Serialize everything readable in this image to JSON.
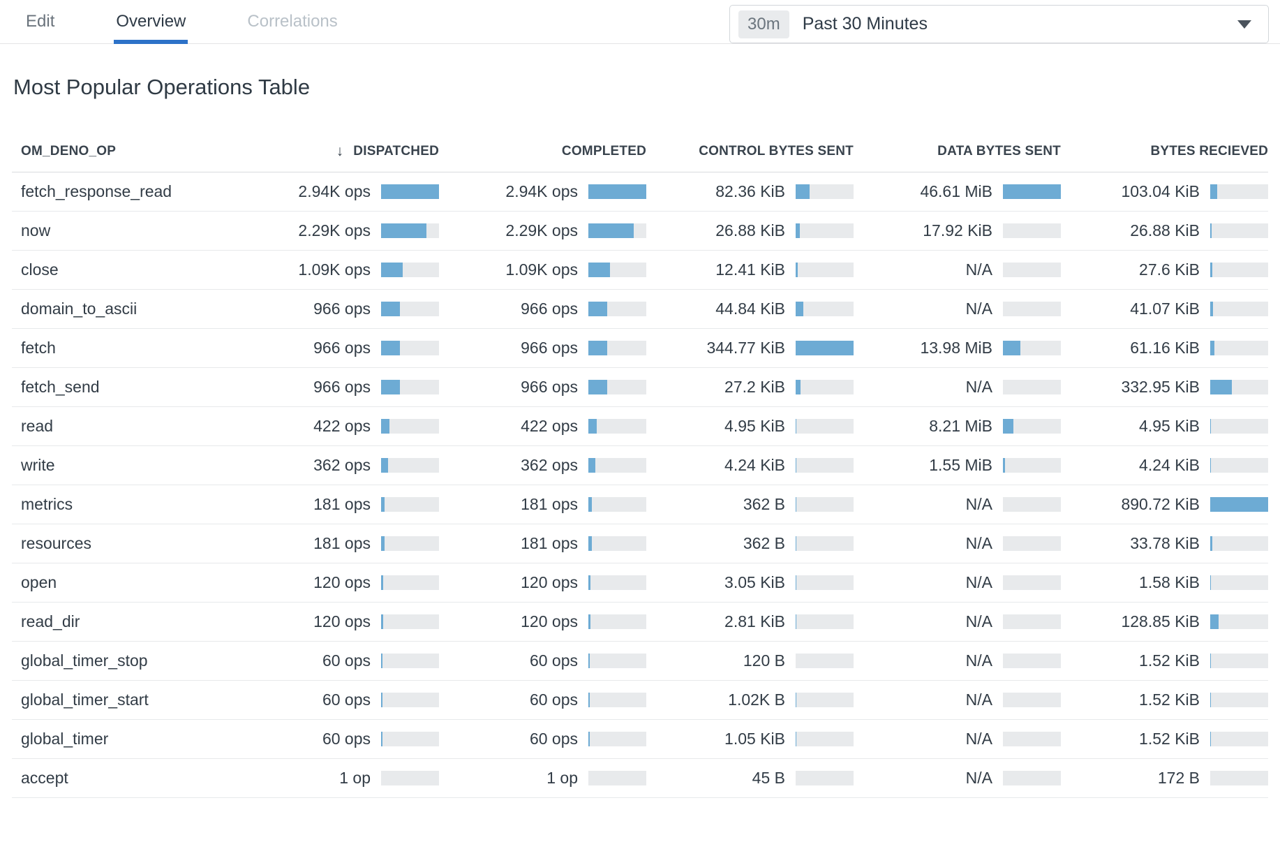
{
  "colors": {
    "accent_blue": "#2d72c8",
    "bar_blue": "#6dabd4",
    "bar_track": "#e8eaec"
  },
  "nav": {
    "tabs": [
      {
        "label": "Edit",
        "state": "normal"
      },
      {
        "label": "Overview",
        "state": "active"
      },
      {
        "label": "Correlations",
        "state": "disabled"
      }
    ]
  },
  "time_selector": {
    "badge": "30m",
    "label": "Past 30 Minutes"
  },
  "title": "Most Popular Operations Table",
  "table": {
    "columns": [
      {
        "label": "OM_DENO_OP",
        "sorted": false
      },
      {
        "label": "DISPATCHED",
        "sorted": true,
        "sort_icon": "↓"
      },
      {
        "label": "COMPLETED",
        "sorted": false
      },
      {
        "label": "CONTROL BYTES SENT",
        "sorted": false
      },
      {
        "label": "DATA BYTES SENT",
        "sorted": false
      },
      {
        "label": "BYTES RECIEVED",
        "sorted": false
      }
    ],
    "rows": [
      {
        "op": "fetch_response_read",
        "cells": [
          {
            "text": "2.94K ops",
            "frac": 1
          },
          {
            "text": "2.94K ops",
            "frac": 1
          },
          {
            "text": "82.36 KiB",
            "frac": 0.24
          },
          {
            "text": "46.61 MiB",
            "frac": 1
          },
          {
            "text": "103.04 KiB",
            "frac": 0.116
          }
        ]
      },
      {
        "op": "now",
        "cells": [
          {
            "text": "2.29K ops",
            "frac": 0.78
          },
          {
            "text": "2.29K ops",
            "frac": 0.78
          },
          {
            "text": "26.88 KiB",
            "frac": 0.078
          },
          {
            "text": "17.92 KiB",
            "frac": 0.0004
          },
          {
            "text": "26.88 KiB",
            "frac": 0.03
          }
        ]
      },
      {
        "op": "close",
        "cells": [
          {
            "text": "1.09K ops",
            "frac": 0.37
          },
          {
            "text": "1.09K ops",
            "frac": 0.37
          },
          {
            "text": "12.41 KiB",
            "frac": 0.036
          },
          {
            "text": "N/A",
            "frac": 0
          },
          {
            "text": "27.6 KiB",
            "frac": 0.031
          }
        ]
      },
      {
        "op": "domain_to_ascii",
        "cells": [
          {
            "text": "966 ops",
            "frac": 0.33
          },
          {
            "text": "966 ops",
            "frac": 0.33
          },
          {
            "text": "44.84 KiB",
            "frac": 0.13
          },
          {
            "text": "N/A",
            "frac": 0
          },
          {
            "text": "41.07 KiB",
            "frac": 0.046
          }
        ]
      },
      {
        "op": "fetch",
        "cells": [
          {
            "text": "966 ops",
            "frac": 0.33
          },
          {
            "text": "966 ops",
            "frac": 0.33
          },
          {
            "text": "344.77 KiB",
            "frac": 1
          },
          {
            "text": "13.98 MiB",
            "frac": 0.3
          },
          {
            "text": "61.16 KiB",
            "frac": 0.069
          }
        ]
      },
      {
        "op": "fetch_send",
        "cells": [
          {
            "text": "966 ops",
            "frac": 0.33
          },
          {
            "text": "966 ops",
            "frac": 0.33
          },
          {
            "text": "27.2 KiB",
            "frac": 0.079
          },
          {
            "text": "N/A",
            "frac": 0
          },
          {
            "text": "332.95 KiB",
            "frac": 0.374
          }
        ]
      },
      {
        "op": "read",
        "cells": [
          {
            "text": "422 ops",
            "frac": 0.144
          },
          {
            "text": "422 ops",
            "frac": 0.144
          },
          {
            "text": "4.95 KiB",
            "frac": 0.014
          },
          {
            "text": "8.21 MiB",
            "frac": 0.176
          },
          {
            "text": "4.95 KiB",
            "frac": 0.006
          }
        ]
      },
      {
        "op": "write",
        "cells": [
          {
            "text": "362 ops",
            "frac": 0.123
          },
          {
            "text": "362 ops",
            "frac": 0.123
          },
          {
            "text": "4.24 KiB",
            "frac": 0.012
          },
          {
            "text": "1.55 MiB",
            "frac": 0.033
          },
          {
            "text": "4.24 KiB",
            "frac": 0.005
          }
        ]
      },
      {
        "op": "metrics",
        "cells": [
          {
            "text": "181 ops",
            "frac": 0.062
          },
          {
            "text": "181 ops",
            "frac": 0.062
          },
          {
            "text": "362 B",
            "frac": 0.001
          },
          {
            "text": "N/A",
            "frac": 0
          },
          {
            "text": "890.72 KiB",
            "frac": 1
          }
        ]
      },
      {
        "op": "resources",
        "cells": [
          {
            "text": "181 ops",
            "frac": 0.062
          },
          {
            "text": "181 ops",
            "frac": 0.062
          },
          {
            "text": "362 B",
            "frac": 0.001
          },
          {
            "text": "N/A",
            "frac": 0
          },
          {
            "text": "33.78 KiB",
            "frac": 0.038
          }
        ]
      },
      {
        "op": "open",
        "cells": [
          {
            "text": "120 ops",
            "frac": 0.041
          },
          {
            "text": "120 ops",
            "frac": 0.041
          },
          {
            "text": "3.05 KiB",
            "frac": 0.009
          },
          {
            "text": "N/A",
            "frac": 0
          },
          {
            "text": "1.58 KiB",
            "frac": 0.002
          }
        ]
      },
      {
        "op": "read_dir",
        "cells": [
          {
            "text": "120 ops",
            "frac": 0.041
          },
          {
            "text": "120 ops",
            "frac": 0.041
          },
          {
            "text": "2.81 KiB",
            "frac": 0.008
          },
          {
            "text": "N/A",
            "frac": 0
          },
          {
            "text": "128.85 KiB",
            "frac": 0.145
          }
        ]
      },
      {
        "op": "global_timer_stop",
        "cells": [
          {
            "text": "60 ops",
            "frac": 0.02
          },
          {
            "text": "60 ops",
            "frac": 0.02
          },
          {
            "text": "120 B",
            "frac": 0.0003
          },
          {
            "text": "N/A",
            "frac": 0
          },
          {
            "text": "1.52 KiB",
            "frac": 0.002
          }
        ]
      },
      {
        "op": "global_timer_start",
        "cells": [
          {
            "text": "60 ops",
            "frac": 0.02
          },
          {
            "text": "60 ops",
            "frac": 0.02
          },
          {
            "text": "1.02K B",
            "frac": 0.003
          },
          {
            "text": "N/A",
            "frac": 0
          },
          {
            "text": "1.52 KiB",
            "frac": 0.002
          }
        ]
      },
      {
        "op": "global_timer",
        "cells": [
          {
            "text": "60 ops",
            "frac": 0.02
          },
          {
            "text": "60 ops",
            "frac": 0.02
          },
          {
            "text": "1.05 KiB",
            "frac": 0.003
          },
          {
            "text": "N/A",
            "frac": 0
          },
          {
            "text": "1.52 KiB",
            "frac": 0.002
          }
        ]
      },
      {
        "op": "accept",
        "cells": [
          {
            "text": "1 op",
            "frac": 0.0003
          },
          {
            "text": "1 op",
            "frac": 0.0003
          },
          {
            "text": "45 B",
            "frac": 0.0001
          },
          {
            "text": "N/A",
            "frac": 0
          },
          {
            "text": "172 B",
            "frac": 0.0002
          }
        ]
      }
    ]
  }
}
